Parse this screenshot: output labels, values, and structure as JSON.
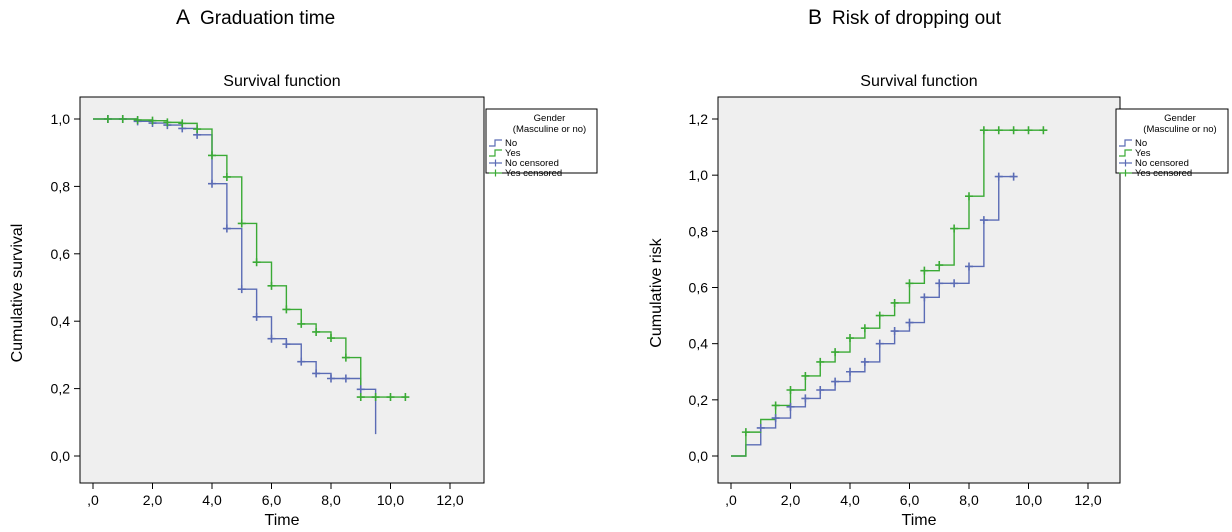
{
  "panels": [
    {
      "letter": "A",
      "heading": "Graduation time"
    },
    {
      "letter": "B",
      "heading": "Risk of dropping out"
    }
  ],
  "colors": {
    "no": "#5b6cb5",
    "yes": "#3aaa35",
    "plot_bg": "#efefef"
  },
  "chart_data": [
    {
      "type": "line",
      "step": true,
      "title": "Survival function",
      "xlabel": "Time",
      "ylabel": "Cumulative survival",
      "xlim": [
        0,
        12
      ],
      "ylim": [
        0,
        1
      ],
      "xticks": [
        ",0",
        "2,0",
        "4,0",
        "6,0",
        "8,0",
        "10,0",
        "12,0"
      ],
      "yticks": [
        "0,0",
        "0,2",
        "0,4",
        "0,6",
        "0,8",
        "1,0"
      ],
      "legend": {
        "title": "Gender\n(Masculine or no)",
        "entries": [
          "No",
          "Yes",
          "No censored",
          "Yes censored"
        ],
        "placement": "top-right"
      },
      "series": [
        {
          "name": "No",
          "color_key": "no",
          "x": [
            0,
            1.5,
            2,
            2.5,
            3,
            3.5,
            4,
            4.5,
            5,
            5.5,
            6,
            6.5,
            7,
            7.5,
            8,
            8.5,
            9,
            9.5
          ],
          "y": [
            1,
            0.993,
            0.988,
            0.982,
            0.972,
            0.953,
            0.808,
            0.675,
            0.495,
            0.413,
            0.348,
            0.332,
            0.28,
            0.245,
            0.23,
            0.23,
            0.198,
            0.065
          ]
        },
        {
          "name": "Yes",
          "color_key": "yes",
          "x": [
            0,
            1.5,
            2,
            2.5,
            3,
            3.5,
            4,
            4.5,
            5,
            5.5,
            6,
            6.5,
            7,
            7.5,
            8,
            8.5,
            9,
            10.5
          ],
          "y": [
            1,
            0.997,
            0.995,
            0.99,
            0.987,
            0.97,
            0.892,
            0.828,
            0.69,
            0.575,
            0.505,
            0.435,
            0.392,
            0.368,
            0.35,
            0.292,
            0.175,
            0.175
          ]
        },
        {
          "name": "No censored",
          "color_key": "no",
          "censored": true,
          "x": [
            0.5,
            1,
            1.5,
            2,
            2.5,
            3,
            3.5,
            4,
            4.5,
            5,
            5.5,
            6,
            6.5,
            7,
            7.5,
            8,
            8.5,
            9
          ],
          "y": [
            1,
            1,
            0.993,
            0.988,
            0.982,
            0.972,
            0.953,
            0.808,
            0.675,
            0.495,
            0.413,
            0.348,
            0.332,
            0.28,
            0.245,
            0.23,
            0.23,
            0.198
          ]
        },
        {
          "name": "Yes censored",
          "color_key": "yes",
          "censored": true,
          "x": [
            0.5,
            1,
            1.5,
            2,
            2.5,
            3,
            3.5,
            4,
            4.5,
            5,
            5.5,
            6,
            6.5,
            7,
            7.5,
            8,
            8.5,
            9,
            9.5,
            10,
            10.5
          ],
          "y": [
            1,
            1,
            0.997,
            0.995,
            0.99,
            0.987,
            0.97,
            0.892,
            0.828,
            0.69,
            0.575,
            0.505,
            0.435,
            0.392,
            0.368,
            0.35,
            0.292,
            0.175,
            0.175,
            0.175,
            0.175
          ]
        }
      ]
    },
    {
      "type": "line",
      "step": true,
      "title": "Survival function",
      "xlabel": "Time",
      "ylabel": "Cumulative risk",
      "xlim": [
        0,
        12
      ],
      "ylim": [
        0,
        1.2
      ],
      "xticks": [
        ",0",
        "2,0",
        "4,0",
        "6,0",
        "8,0",
        "10,0",
        "12,0"
      ],
      "yticks": [
        "0,0",
        "0,2",
        "0,4",
        "0,6",
        "0,8",
        "1,0",
        "1,2"
      ],
      "legend": {
        "title": "Gender\n(Masculine or no)",
        "entries": [
          "No",
          "Yes",
          "No censored",
          "Yes censored"
        ],
        "placement": "top-right"
      },
      "series": [
        {
          "name": "No",
          "color_key": "no",
          "x": [
            0,
            0.5,
            1,
            1.5,
            2,
            2.5,
            3,
            3.5,
            4,
            4.5,
            5,
            5.5,
            6,
            6.5,
            7,
            7.5,
            8,
            8.5,
            9,
            9.5
          ],
          "y": [
            0,
            0.04,
            0.1,
            0.135,
            0.175,
            0.205,
            0.235,
            0.265,
            0.3,
            0.335,
            0.4,
            0.445,
            0.475,
            0.565,
            0.615,
            0.615,
            0.675,
            0.84,
            0.995,
            0.995
          ]
        },
        {
          "name": "Yes",
          "color_key": "yes",
          "x": [
            0,
            0.5,
            1,
            1.5,
            2,
            2.5,
            3,
            3.5,
            4,
            4.5,
            5,
            5.5,
            6,
            6.5,
            7,
            7.5,
            8,
            8.5,
            10.5
          ],
          "y": [
            0,
            0.085,
            0.13,
            0.18,
            0.235,
            0.285,
            0.335,
            0.37,
            0.42,
            0.455,
            0.5,
            0.545,
            0.615,
            0.66,
            0.68,
            0.81,
            0.925,
            1.16,
            1.16
          ]
        },
        {
          "name": "No censored",
          "color_key": "no",
          "censored": true,
          "x": [
            1,
            1.5,
            2,
            2.5,
            3,
            3.5,
            4,
            4.5,
            5,
            5.5,
            6,
            6.5,
            7,
            7.5,
            8,
            8.5,
            9,
            9.5
          ],
          "y": [
            0.1,
            0.135,
            0.175,
            0.205,
            0.235,
            0.265,
            0.3,
            0.335,
            0.4,
            0.445,
            0.475,
            0.565,
            0.615,
            0.615,
            0.675,
            0.84,
            0.995,
            0.995
          ]
        },
        {
          "name": "Yes censored",
          "color_key": "yes",
          "censored": true,
          "x": [
            0.5,
            1.5,
            2,
            2.5,
            3,
            3.5,
            4,
            4.5,
            5,
            5.5,
            6,
            6.5,
            7,
            7.5,
            8,
            8.5,
            9,
            9.5,
            10,
            10.5
          ],
          "y": [
            0.085,
            0.18,
            0.235,
            0.285,
            0.335,
            0.37,
            0.42,
            0.455,
            0.5,
            0.545,
            0.615,
            0.66,
            0.68,
            0.81,
            0.925,
            1.16,
            1.16,
            1.16,
            1.16,
            1.16
          ]
        }
      ]
    }
  ]
}
